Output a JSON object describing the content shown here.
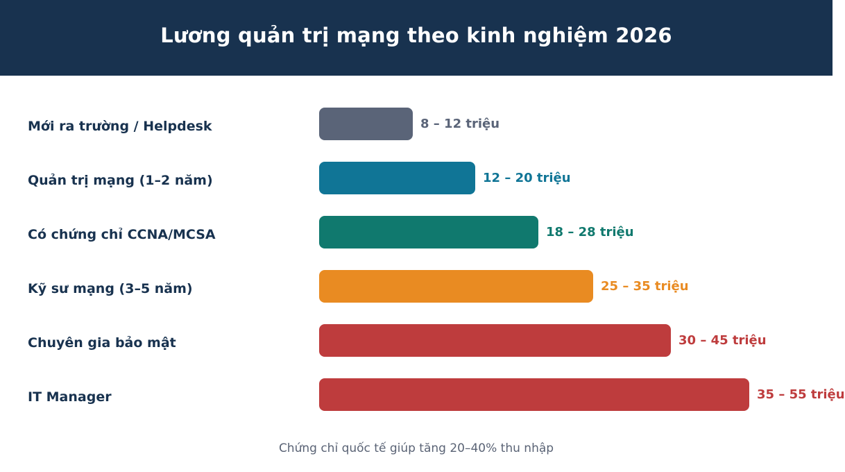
{
  "header": {
    "title": "Lương quản trị mạng theo kinh nghiệm 2026"
  },
  "chart_data": {
    "type": "bar",
    "orientation": "horizontal",
    "title": "Lương quản trị mạng theo kinh nghiệm 2026",
    "categories": [
      "Mới ra trường / Helpdesk",
      "Quản trị mạng (1–2 năm)",
      "Có chứng chỉ CCNA/MCSA",
      "Kỹ sư mạng (3–5 năm)",
      "Chuyên gia bảo mật",
      "IT Manager"
    ],
    "value_labels": [
      "8 – 12 triệu",
      "12 – 20 triệu",
      "18 – 28 triệu",
      "25 – 35 triệu",
      "30 – 45 triệu",
      "35 – 55 triệu"
    ],
    "values": [
      12,
      20,
      28,
      35,
      45,
      55
    ],
    "colors": [
      "#5a6478",
      "#107596",
      "#10796e",
      "#e98b22",
      "#be3c3d",
      "#be3c3d"
    ],
    "grid": false,
    "legend": "none"
  },
  "footnote": "Chứng chỉ quốc tế giúp tăng 20–40% thu nhập"
}
